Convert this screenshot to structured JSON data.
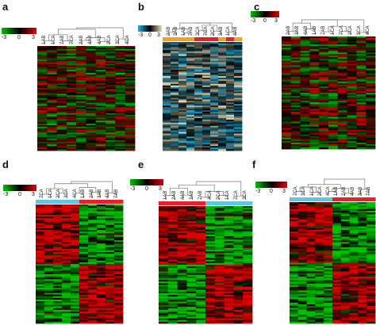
{
  "colorscale": {
    "green_red": [
      "#00c000",
      "#000000",
      "#e00000"
    ],
    "blue_yellow": [
      "#1fb4e6",
      "#000000",
      "#e8dcb0"
    ],
    "tick_labels": [
      "-3",
      "0",
      "3"
    ]
  },
  "group_colors": {
    "AB": "#e8202a",
    "CA": "#5fc8e0",
    "orange": "#f6a31b"
  },
  "chart_data": [
    {
      "type": "heatmap",
      "panel": "a",
      "columns": [
        "1AB",
        "1CA",
        "7AB",
        "7CA",
        "2AB",
        "4AB",
        "4AB",
        "2CA",
        "3CA",
        "4CA"
      ],
      "colorscale": "green_red",
      "scale_range": [
        -3,
        3
      ]
    },
    {
      "type": "heatmap",
      "panel": "b",
      "columns": [
        "2AB",
        "3AB",
        "1AB",
        "7AB",
        "3CA",
        "7CA",
        "2CA",
        "3AB",
        "1CA",
        "4AB"
      ],
      "colorscale": "blue_yellow",
      "scale_range": [
        -3,
        3
      ]
    },
    {
      "type": "heatmap",
      "panel": "c",
      "columns": [
        "2AB",
        "3AB",
        "4AB",
        "1AB",
        "7AB",
        "1CA",
        "7CA",
        "2CA",
        "3CA",
        "4CA"
      ],
      "colorscale": "green_red",
      "scale_range": [
        -3,
        3
      ]
    },
    {
      "type": "heatmap",
      "panel": "d",
      "columns": [
        "7CA",
        "1CA",
        "2CA",
        "3CA",
        "4CA",
        "1AB",
        "2AB",
        "3AB",
        "4AB",
        "7AB"
      ],
      "colorscale": "green_red",
      "scale_range": [
        -3,
        3
      ]
    },
    {
      "type": "heatmap",
      "panel": "e",
      "columns": [
        "1AB",
        "2AB",
        "4AB",
        "3AB",
        "7AB",
        "4CA",
        "2CA",
        "1CA",
        "7CA",
        "3CA"
      ],
      "colorscale": "green_red",
      "scale_range": [
        -3,
        3
      ]
    },
    {
      "type": "heatmap",
      "panel": "f",
      "columns": [
        "7CA",
        "3CA",
        "1CA",
        "2CA",
        "4CA",
        "1AB",
        "2AB",
        "4AB",
        "3AB",
        "7AB"
      ],
      "colorscale": "green_red",
      "scale_range": [
        -3,
        3
      ]
    }
  ],
  "panel_labels": [
    "a",
    "b",
    "c",
    "d",
    "e",
    "f"
  ]
}
